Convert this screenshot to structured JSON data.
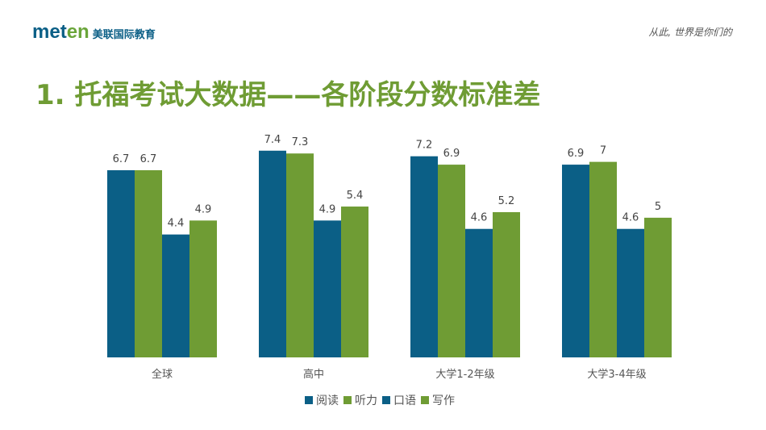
{
  "header": {
    "logo_text": "meten",
    "logo_cn": "美联国际教育",
    "slogan": "从此, 世界是你们的"
  },
  "title": "1. 托福考试大数据——各阶段分数标准差",
  "colors": {
    "blue": "#0b5f86",
    "green": "#6f9c34"
  },
  "chart_data": {
    "type": "bar",
    "categories": [
      "全球",
      "高中",
      "大学1-2年级",
      "大学3-4年级"
    ],
    "series": [
      {
        "name": "阅读",
        "values": [
          6.7,
          7.4,
          7.2,
          6.9
        ],
        "color": "#0b5f86"
      },
      {
        "name": "听力",
        "values": [
          6.7,
          7.3,
          6.9,
          7
        ],
        "color": "#6f9c34"
      },
      {
        "name": "口语",
        "values": [
          4.4,
          4.9,
          4.6,
          4.6
        ],
        "color": "#0b5f86"
      },
      {
        "name": "写作",
        "values": [
          4.9,
          5.4,
          5.2,
          5
        ],
        "color": "#6f9c34"
      }
    ],
    "ylim": [
      0,
      8
    ],
    "grid": false,
    "legend": "bottom"
  }
}
